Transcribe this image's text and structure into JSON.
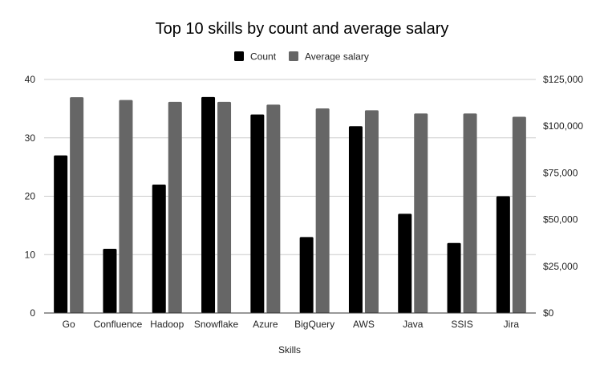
{
  "chart_data": {
    "type": "bar",
    "title": "Top 10 skills by count and average salary",
    "xlabel": "Skills",
    "ylabel_left": "",
    "ylabel_right": "",
    "categories": [
      "Go",
      "Confluence",
      "Hadoop",
      "Snowflake",
      "Azure",
      "BigQuery",
      "AWS",
      "Java",
      "SSIS",
      "Jira"
    ],
    "series": [
      {
        "name": "Count",
        "axis": "left",
        "color": "#000000",
        "values": [
          27,
          11,
          22,
          37,
          34,
          13,
          32,
          17,
          12,
          20
        ]
      },
      {
        "name": "Average salary",
        "axis": "right",
        "color": "#666666",
        "values": [
          115500,
          114000,
          113000,
          113000,
          111500,
          109500,
          108500,
          106800,
          106800,
          105000
        ]
      }
    ],
    "ylim_left": [
      0,
      40
    ],
    "yticks_left": [
      "0",
      "10",
      "20",
      "30",
      "40"
    ],
    "ylim_right": [
      0,
      125000
    ],
    "yticks_right": [
      "$0",
      "$25,000",
      "$50,000",
      "$75,000",
      "$100,000",
      "$125,000"
    ],
    "grid": true,
    "legend": "top-center"
  }
}
